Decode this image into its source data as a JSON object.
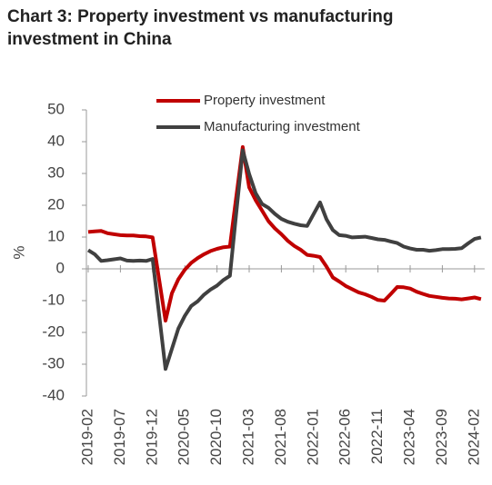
{
  "chart_data": {
    "type": "line",
    "title": "Chart 3: Property investment vs manufacturing investment in China",
    "ylabel": "%",
    "categories": [
      "2019-02",
      null,
      null,
      null,
      null,
      "2019-07",
      null,
      null,
      null,
      null,
      "2019-12",
      null,
      null,
      null,
      null,
      "2020-05",
      null,
      null,
      null,
      null,
      "2020-10",
      null,
      null,
      null,
      null,
      "2021-03",
      null,
      null,
      null,
      null,
      "2021-08",
      null,
      null,
      null,
      null,
      "2022-01",
      null,
      null,
      null,
      null,
      "2022-06",
      null,
      null,
      null,
      null,
      "2022-11",
      null,
      null,
      null,
      null,
      "2023-04",
      null,
      null,
      null,
      null,
      "2023-09",
      null,
      null,
      null,
      null,
      "2024-02",
      null
    ],
    "series": [
      {
        "name": "Property investment",
        "color": "#c00000",
        "values": [
          11.6,
          11.8,
          11.9,
          11.2,
          10.9,
          10.6,
          10.5,
          10.5,
          10.3,
          10.2,
          9.9,
          -3.2,
          -16.3,
          -7.7,
          -3.3,
          -0.3,
          1.9,
          3.4,
          4.6,
          5.6,
          6.3,
          6.8,
          7.0,
          22.7,
          38.3,
          25.6,
          21.6,
          18.3,
          15.0,
          12.7,
          10.9,
          8.8,
          7.2,
          6.0,
          4.4,
          4.1,
          3.7,
          0.7,
          -2.7,
          -4.0,
          -5.4,
          -6.4,
          -7.4,
          -8.0,
          -8.8,
          -9.8,
          -10.0,
          -7.9,
          -5.7,
          -5.8,
          -6.2,
          -7.2,
          -7.9,
          -8.5,
          -8.8,
          -9.1,
          -9.3,
          -9.4,
          -9.6,
          -9.3,
          -9.0,
          -9.5
        ]
      },
      {
        "name": "Manufacturing investment",
        "color": "#404040",
        "values": [
          5.9,
          4.6,
          2.5,
          2.7,
          3.0,
          3.3,
          2.6,
          2.5,
          2.6,
          2.5,
          3.1,
          -14.2,
          -31.5,
          -25.2,
          -18.8,
          -14.8,
          -11.7,
          -10.2,
          -8.1,
          -6.5,
          -5.3,
          -3.5,
          -2.2,
          17.6,
          37.3,
          29.8,
          23.8,
          20.4,
          19.2,
          17.3,
          15.7,
          14.8,
          14.2,
          13.7,
          13.5,
          17.2,
          20.9,
          15.6,
          12.2,
          10.6,
          10.4,
          9.9,
          10.0,
          10.1,
          9.7,
          9.3,
          9.1,
          8.6,
          8.1,
          7.0,
          6.4,
          6.0,
          6.0,
          5.7,
          5.9,
          6.2,
          6.2,
          6.3,
          6.5,
          8.0,
          9.4,
          9.9
        ]
      }
    ],
    "ylim": [
      -40,
      50
    ],
    "yticks": [
      -40,
      -30,
      -20,
      -10,
      0,
      10,
      20,
      30,
      40,
      50
    ],
    "grid": false,
    "legend": "top"
  }
}
